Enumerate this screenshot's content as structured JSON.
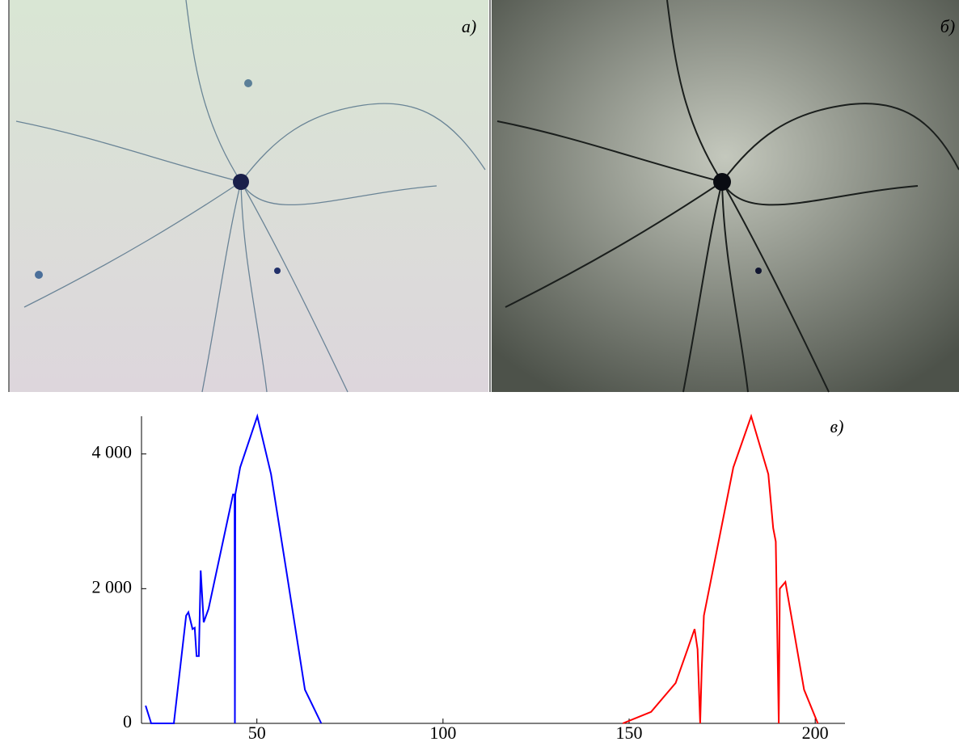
{
  "panel_labels": [
    "а)",
    "б)",
    "в)"
  ],
  "chart_data": {
    "type": "line",
    "xlim": [
      19,
      208
    ],
    "ylim": [
      0,
      4560
    ],
    "xticks": [
      50,
      100,
      150,
      200
    ],
    "yticks": [
      0,
      {
        "value": 2000,
        "label": "2 000"
      },
      {
        "value": 4000,
        "label": "4 000"
      }
    ],
    "series": [
      {
        "color": "#0000ff",
        "x": [
          20.1,
          21.6,
          27.7,
          31.0,
          31.6,
          32.7,
          33.3,
          33.8,
          34.4,
          34.9,
          35.7,
          37.0,
          43.6,
          44.0,
          44.1,
          44.2,
          45.5,
          50.1,
          53.8,
          58.1,
          62.9,
          67.3
        ],
        "values": [
          263,
          0,
          0,
          1600,
          1650,
          1400,
          1420,
          1000,
          1000,
          2270,
          1500,
          1700,
          3400,
          3400,
          0,
          3400,
          3800,
          4560,
          3700,
          2200,
          500,
          0
        ]
      },
      {
        "color": "#ff0000",
        "x": [
          148.3,
          155.9,
          162.5,
          165.7,
          167.6,
          168.4,
          169.1,
          169.5,
          170.1,
          178.0,
          182.8,
          187.4,
          188.7,
          189.4,
          190.2,
          190.5,
          192.0,
          197.0,
          200.7
        ],
        "values": [
          0,
          170,
          600,
          1100,
          1400,
          1100,
          0,
          800,
          1600,
          3800,
          4560,
          3700,
          2900,
          2700,
          0,
          2000,
          2100,
          500,
          0
        ]
      }
    ]
  }
}
